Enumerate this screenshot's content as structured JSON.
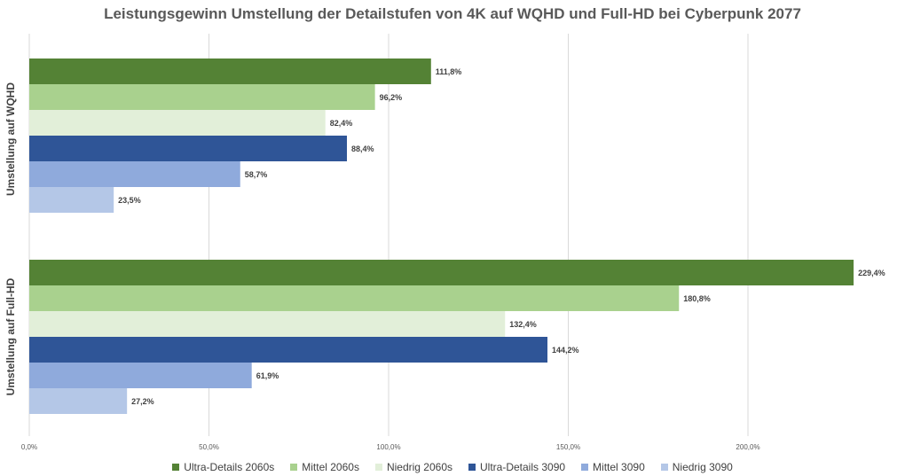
{
  "chart_data": {
    "type": "bar",
    "orientation": "horizontal",
    "title": "Leistungsgewinn Umstellung der Detailstufen von 4K auf WQHD und Full-HD bei Cyberpunk 2077",
    "categories": [
      "Umstellung auf WQHD",
      "Umstellung auf Full-HD"
    ],
    "series": [
      {
        "name": "Ultra-Details 2060s",
        "color": "#548235",
        "values": [
          111.8,
          229.4
        ],
        "labels": [
          "111,8%",
          "229,4%"
        ]
      },
      {
        "name": "Mittel 2060s",
        "color": "#a9d18e",
        "values": [
          96.2,
          180.8
        ],
        "labels": [
          "96,2%",
          "180,8%"
        ]
      },
      {
        "name": "Niedrig 2060s",
        "color": "#e2efd9",
        "values": [
          82.4,
          132.4
        ],
        "labels": [
          "82,4%",
          "132,4%"
        ]
      },
      {
        "name": "Ultra-Details 3090",
        "color": "#2f5597",
        "values": [
          88.4,
          144.2
        ],
        "labels": [
          "88,4%",
          "144,2%"
        ]
      },
      {
        "name": "Mittel 3090",
        "color": "#8faadc",
        "values": [
          58.7,
          61.9
        ],
        "labels": [
          "58,7%",
          "61,9%"
        ]
      },
      {
        "name": "Niedrig 3090",
        "color": "#b4c7e7",
        "values": [
          23.5,
          27.2
        ],
        "labels": [
          "23,5%",
          "27,2%"
        ]
      }
    ],
    "xticks": [
      0,
      50,
      100,
      150,
      200
    ],
    "xtick_labels": [
      "0,0%",
      "50,0%",
      "100,0%",
      "150,0%",
      "200,0%"
    ],
    "xlim": [
      0,
      230
    ],
    "grid": true,
    "legend_position": "bottom"
  }
}
